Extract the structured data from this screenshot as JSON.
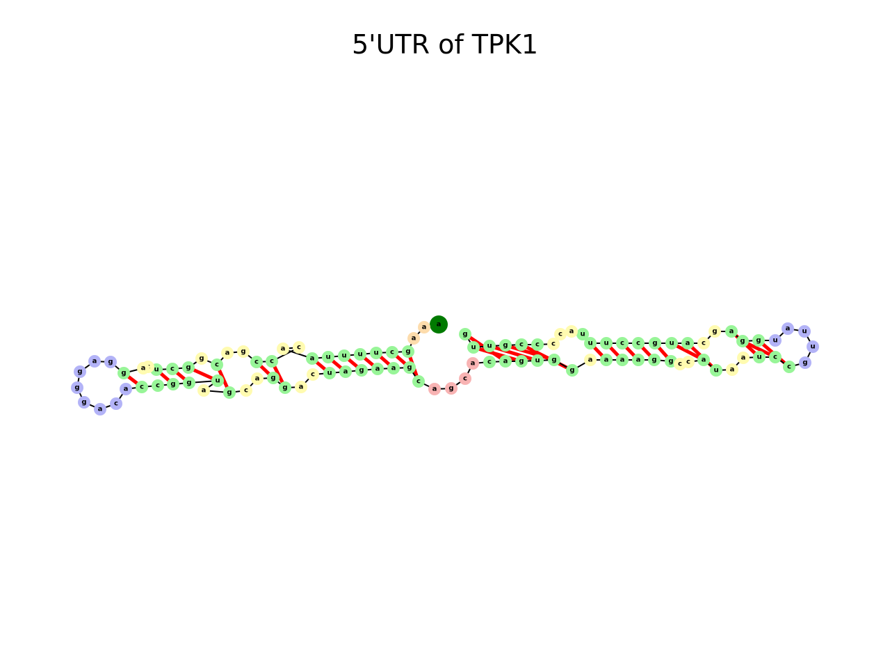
{
  "title": "5'UTR of TPK1",
  "colors": {
    "stem": "#98f598",
    "interior": "#fffbb0",
    "hairpin": "#b3b3f7",
    "multi": "#f8b3b3",
    "dangling": "#fddcac",
    "start": "#007a00",
    "end": "#ff0000",
    "backbone": "#000000",
    "pair": "#ff0000"
  },
  "nucleotides": [
    {
      "label": "a",
      "region": "start"
    },
    {
      "label": "a",
      "region": "dangling"
    },
    {
      "label": "a",
      "region": "dangling"
    },
    {
      "label": "g",
      "region": "stem"
    },
    {
      "label": "c",
      "region": "stem"
    },
    {
      "label": "u",
      "region": "stem"
    },
    {
      "label": "u",
      "region": "stem"
    },
    {
      "label": "u",
      "region": "stem"
    },
    {
      "label": "u",
      "region": "stem"
    },
    {
      "label": "a",
      "region": "stem"
    },
    {
      "label": "a",
      "region": "interior"
    },
    {
      "label": "c",
      "region": "interior"
    },
    {
      "label": "c",
      "region": "stem"
    },
    {
      "label": "c",
      "region": "stem"
    },
    {
      "label": "g",
      "region": "interior"
    },
    {
      "label": "a",
      "region": "interior"
    },
    {
      "label": "c",
      "region": "stem"
    },
    {
      "label": "g",
      "region": "interior"
    },
    {
      "label": "g",
      "region": "stem"
    },
    {
      "label": "c",
      "region": "stem"
    },
    {
      "label": "u",
      "region": "stem"
    },
    {
      "label": "c",
      "region": "interior"
    },
    {
      "label": "a",
      "region": "interior"
    },
    {
      "label": "g",
      "region": "stem"
    },
    {
      "label": "g",
      "region": "hairpin"
    },
    {
      "label": "a",
      "region": "hairpin"
    },
    {
      "label": "g",
      "region": "hairpin"
    },
    {
      "label": "g",
      "region": "hairpin"
    },
    {
      "label": "g",
      "region": "hairpin"
    },
    {
      "label": "a",
      "region": "hairpin"
    },
    {
      "label": "c",
      "region": "hairpin"
    },
    {
      "label": "a",
      "region": "hairpin"
    },
    {
      "label": "c",
      "region": "stem"
    },
    {
      "label": "c",
      "region": "stem"
    },
    {
      "label": "g",
      "region": "stem"
    },
    {
      "label": "g",
      "region": "stem"
    },
    {
      "label": "u",
      "region": "stem"
    },
    {
      "label": "a",
      "region": "interior"
    },
    {
      "label": "g",
      "region": "stem"
    },
    {
      "label": "c",
      "region": "interior"
    },
    {
      "label": "a",
      "region": "interior"
    },
    {
      "label": "g",
      "region": "stem"
    },
    {
      "label": "g",
      "region": "stem"
    },
    {
      "label": "a",
      "region": "interior"
    },
    {
      "label": "c",
      "region": "interior"
    },
    {
      "label": "u",
      "region": "stem"
    },
    {
      "label": "a",
      "region": "stem"
    },
    {
      "label": "g",
      "region": "stem"
    },
    {
      "label": "a",
      "region": "stem"
    },
    {
      "label": "a",
      "region": "stem"
    },
    {
      "label": "g",
      "region": "stem"
    },
    {
      "label": "c",
      "region": "stem"
    },
    {
      "label": "a",
      "region": "multi"
    },
    {
      "label": "g",
      "region": "multi"
    },
    {
      "label": "c",
      "region": "multi"
    },
    {
      "label": "a",
      "region": "multi"
    },
    {
      "label": "c",
      "region": "stem"
    },
    {
      "label": "a",
      "region": "stem"
    },
    {
      "label": "g",
      "region": "stem"
    },
    {
      "label": "u",
      "region": "stem"
    },
    {
      "label": "g",
      "region": "stem"
    },
    {
      "label": "g",
      "region": "stem"
    },
    {
      "label": "a",
      "region": "interior"
    },
    {
      "label": "a",
      "region": "stem"
    },
    {
      "label": "a",
      "region": "stem"
    },
    {
      "label": "a",
      "region": "stem"
    },
    {
      "label": "g",
      "region": "stem"
    },
    {
      "label": "g",
      "region": "stem"
    },
    {
      "label": "c",
      "region": "interior"
    },
    {
      "label": "c",
      "region": "interior"
    },
    {
      "label": "a",
      "region": "stem"
    },
    {
      "label": "u",
      "region": "stem"
    },
    {
      "label": "a",
      "region": "interior"
    },
    {
      "label": "a",
      "region": "interior"
    },
    {
      "label": "u",
      "region": "stem"
    },
    {
      "label": "c",
      "region": "stem"
    },
    {
      "label": "c",
      "region": "stem"
    },
    {
      "label": "g",
      "region": "hairpin"
    },
    {
      "label": "u",
      "region": "hairpin"
    },
    {
      "label": "u",
      "region": "hairpin"
    },
    {
      "label": "a",
      "region": "hairpin"
    },
    {
      "label": "u",
      "region": "hairpin"
    },
    {
      "label": "g",
      "region": "stem"
    },
    {
      "label": "g",
      "region": "stem"
    },
    {
      "label": "a",
      "region": "stem"
    },
    {
      "label": "g",
      "region": "interior"
    },
    {
      "label": "c",
      "region": "interior"
    },
    {
      "label": "a",
      "region": "stem"
    },
    {
      "label": "u",
      "region": "stem"
    },
    {
      "label": "g",
      "region": "stem"
    },
    {
      "label": "c",
      "region": "stem"
    },
    {
      "label": "c",
      "region": "stem"
    },
    {
      "label": "u",
      "region": "stem"
    },
    {
      "label": "u",
      "region": "stem"
    },
    {
      "label": "u",
      "region": "stem"
    },
    {
      "label": "a",
      "region": "interior"
    },
    {
      "label": "c",
      "region": "interior"
    },
    {
      "label": "c",
      "region": "interior"
    },
    {
      "label": "c",
      "region": "stem"
    },
    {
      "label": "c",
      "region": "stem"
    },
    {
      "label": "g",
      "region": "stem"
    },
    {
      "label": "u",
      "region": "stem"
    },
    {
      "label": "u",
      "region": "stem"
    },
    {
      "label": "g",
      "region": "stem"
    },
    {
      "label": "g",
      "region": "end"
    }
  ],
  "pairs": [
    [
      3,
      51
    ],
    [
      4,
      50
    ],
    [
      5,
      49
    ],
    [
      6,
      48
    ],
    [
      7,
      47
    ],
    [
      8,
      46
    ],
    [
      9,
      45
    ],
    [
      12,
      42
    ],
    [
      13,
      41
    ],
    [
      16,
      38
    ],
    [
      18,
      36
    ],
    [
      19,
      35
    ],
    [
      20,
      34
    ],
    [
      23,
      32
    ],
    [
      56,
      104
    ],
    [
      57,
      103
    ],
    [
      58,
      102
    ],
    [
      59,
      101
    ],
    [
      60,
      100
    ],
    [
      61,
      99
    ],
    [
      63,
      93
    ],
    [
      64,
      92
    ],
    [
      65,
      91
    ],
    [
      66,
      90
    ],
    [
      67,
      89
    ],
    [
      70,
      88
    ],
    [
      71,
      87
    ],
    [
      74,
      84
    ],
    [
      75,
      83
    ],
    [
      76,
      82
    ]
  ]
}
